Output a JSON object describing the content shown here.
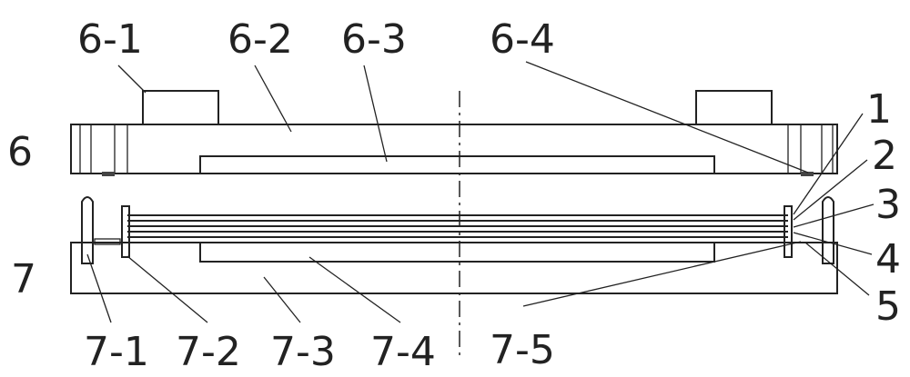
{
  "labels": {
    "l6_1": "6-1",
    "l6_2": "6-2",
    "l6_3": "6-3",
    "l6_4": "6-4",
    "l6": "6",
    "l7": "7",
    "l1": "1",
    "l2": "2",
    "l3": "3",
    "l4": "4",
    "l5": "5",
    "l7_1": "7-1",
    "l7_2": "7-2",
    "l7_3": "7-3",
    "l7_4": "7-4",
    "l7_5": "7-5"
  },
  "colors": {
    "stroke": "#222222",
    "hatch": "#444444",
    "background": "#ffffff"
  }
}
